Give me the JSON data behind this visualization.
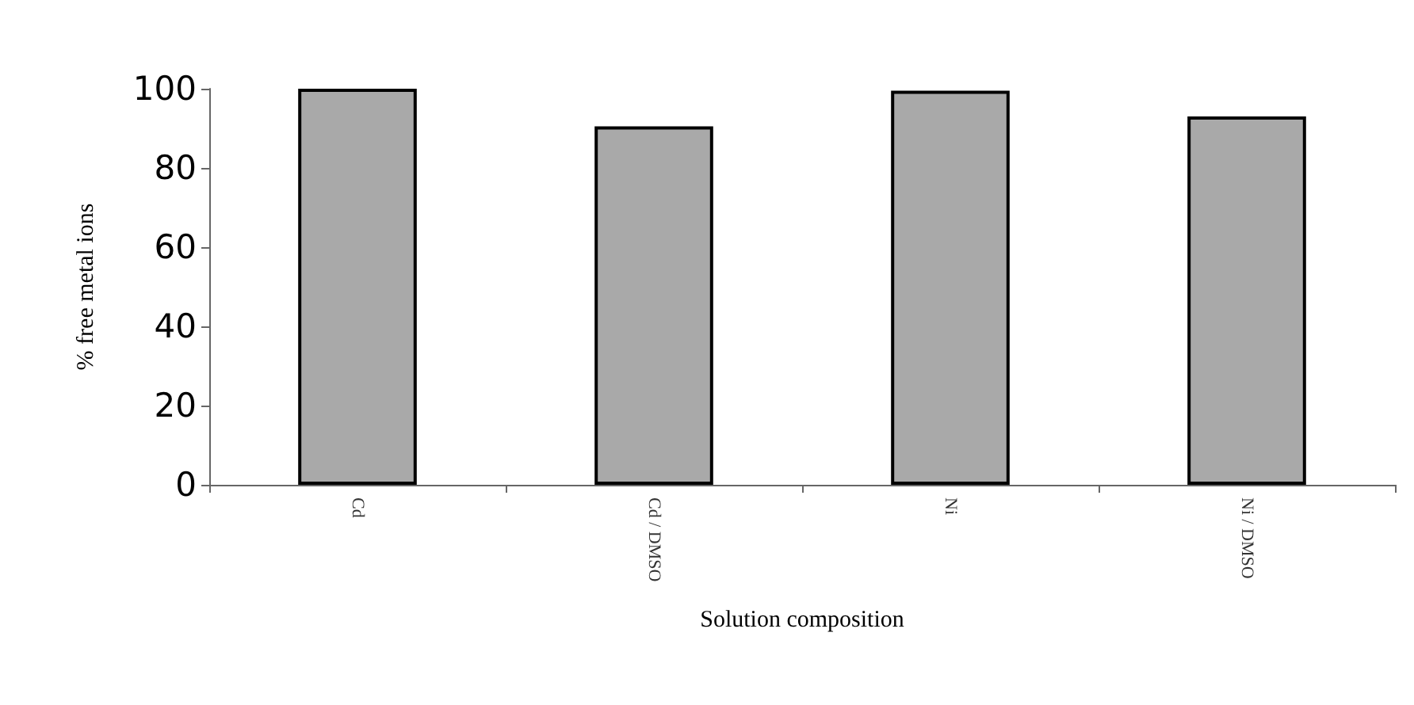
{
  "chart_data": {
    "type": "bar",
    "xlabel": "Solution composition",
    "ylabel": "% free metal ions",
    "categories": [
      "Cd",
      "Cd / DMSO",
      "Ni",
      "Ni / DMSO"
    ],
    "values": [
      100,
      90.5,
      99.5,
      93
    ],
    "color": "#a9a9a9",
    "ylim": [
      0,
      100
    ],
    "yticks": [
      0,
      20,
      40,
      60,
      80,
      100
    ],
    "grid": false
  }
}
